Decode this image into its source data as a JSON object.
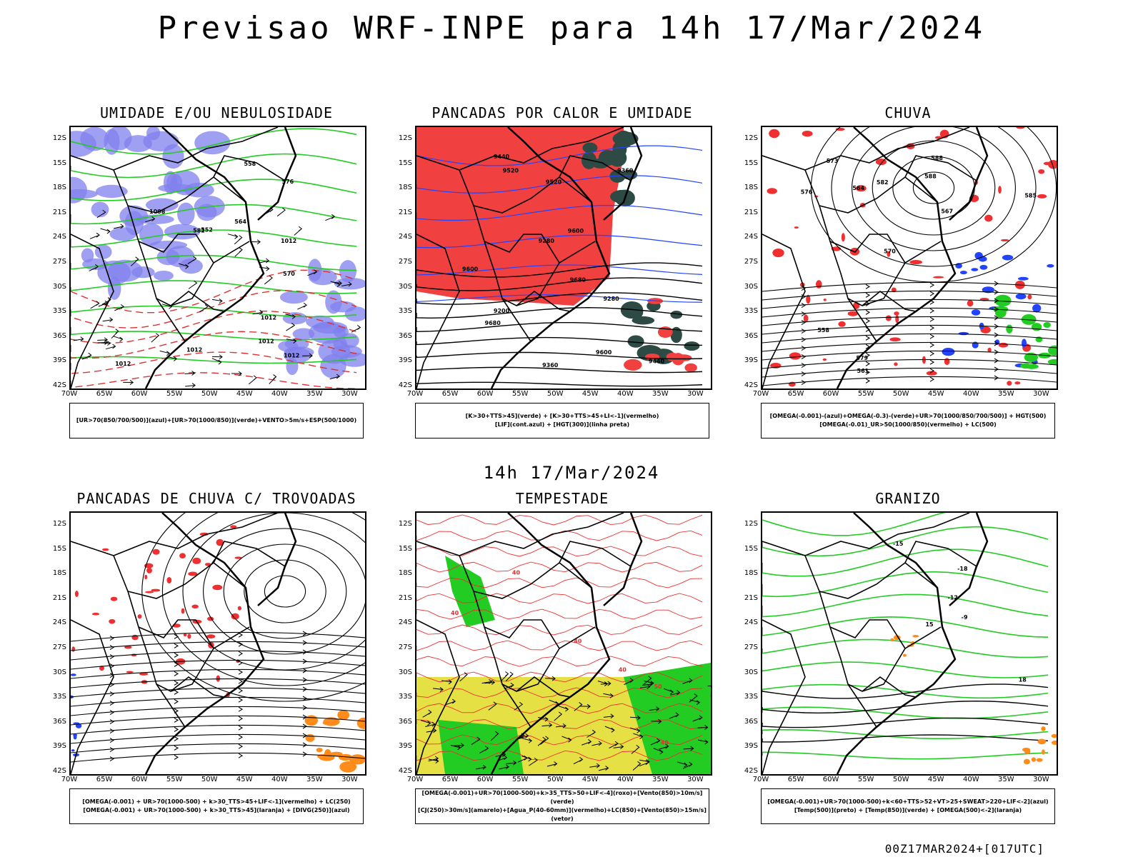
{
  "title": "Previsao WRF-INPE  para 14h 17/Mar/2024",
  "subtitle": "14h 17/Mar/2024",
  "footer": "00Z17MAR2024+[017UTC]",
  "axes": {
    "lat": [
      "12S",
      "15S",
      "18S",
      "21S",
      "24S",
      "27S",
      "30S",
      "33S",
      "36S",
      "39S",
      "42S"
    ],
    "lon": [
      "70W",
      "65W",
      "60W",
      "55W",
      "50W",
      "45W",
      "40W",
      "35W",
      "30W"
    ]
  },
  "colors": {
    "red": "#ff3c3c",
    "green": "#22cc22",
    "blue": "#2244ff",
    "purple": "#8080ee",
    "yellow": "#e5e044",
    "orange": "#ff8c1a",
    "darkgreen": "#2d4a44"
  },
  "panels": [
    {
      "id": "umidade",
      "title": "UMIDADE E/OU NEBULOSIDADE",
      "legend": [
        "[UR>70(850/700/500)](azul)+[UR>70(1000/850)](verde)+VENTO>5m/s+ESP(500/1000)"
      ],
      "contour_labels": [
        "1012",
        "1012",
        "1012",
        "1012",
        "1008",
        "1012",
        "1012",
        "582",
        "576",
        "570",
        "564",
        "558",
        "552"
      ]
    },
    {
      "id": "pancadas-calor",
      "title": "PANCADAS POR CALOR E UMIDADE",
      "legend": [
        "[K>30+TTS>45](verde) + [K>30+TTS>45+LI<-1](vermelho)",
        "[LIF](cont.azul) + [HGT(300)](linha preta)"
      ],
      "contour_labels": [
        "9680",
        "9600",
        "9680",
        "9600",
        "9520",
        "9440",
        "9360",
        "9280",
        "9200",
        "9600",
        "9520",
        "9440",
        "9360",
        "9280"
      ]
    },
    {
      "id": "chuva",
      "title": "CHUVA",
      "legend": [
        "[OMEGA(-0.001)-(azul)+OMEGA(-0.3)-(verde)+UR>70(1000/850/700/500)] + HGT(500)",
        "[OMEGA(-0.01)_UR>50(1000/850)(vermelho) + LC(500)"
      ],
      "contour_labels": [
        "588",
        "588",
        "585",
        "582",
        "579",
        "576",
        "573",
        "570",
        "567",
        "564",
        "561",
        "558"
      ]
    },
    {
      "id": "trovoadas",
      "title": "PANCADAS DE CHUVA C/ TROVOADAS",
      "legend": [
        "[OMEGA(-0.001) + UR>70(1000-500) + k>30_TTS>45+LIF<-1](vermelho) + LC(250)",
        "[OMEGA(-0.001) + UR>70(1000-500) + k>30_TTS>45](laranja) + [DIVG(250)](azul)"
      ],
      "contour_labels": []
    },
    {
      "id": "tempestade",
      "title": "TEMPESTADE",
      "legend": [
        "[OMEGA(-0.001)+UR>70(1000-500)+k>35_TTS>50+LIF<-4](roxo)+[Vento(850)>10m/s](verde)",
        "[CJ(250)>30m/s](amarelo)+[Agua_P(40-60mm)](vermelho)+LC(850)+[Vento(850)>15m/s](vetor)"
      ],
      "contour_labels": [
        "40",
        "40",
        "40",
        "50",
        "40",
        "40"
      ]
    },
    {
      "id": "granizo",
      "title": "GRANIZO",
      "legend": [
        "[OMEGA(-0.001)+UR>70(1000-500)+k<60+TTS>52+VT>25+SWEAT>220+LIF<-2](azul)",
        "[Temp(500)](preto) + [Temp(850)](verde) + [OMEGA(500)<-2](laranja)"
      ],
      "contour_labels": [
        "-9",
        "-12",
        "-15",
        "-18",
        "15",
        "18"
      ]
    }
  ]
}
